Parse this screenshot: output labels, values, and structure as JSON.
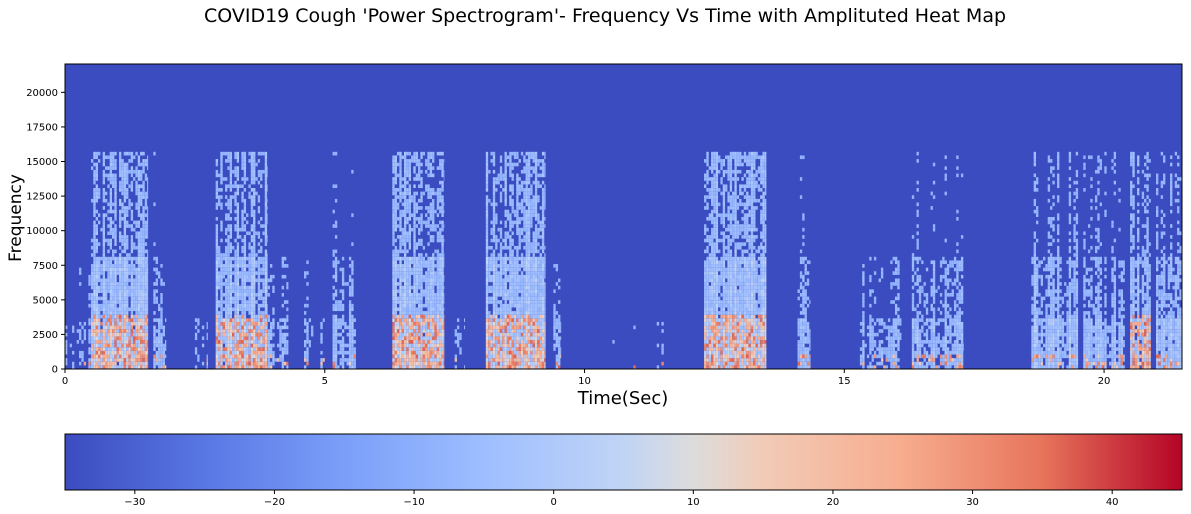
{
  "chart_data": {
    "type": "heatmap",
    "title": "COVID19 Cough 'Power Spectrogram'- Frequency Vs Time with Amplituted Heat Map",
    "xlabel": "Time(Sec)",
    "ylabel": "Frequency",
    "xlim": [
      0,
      21.5
    ],
    "ylim": [
      0,
      22050
    ],
    "xticks": [
      0,
      5,
      10,
      15,
      20
    ],
    "yticks": [
      0,
      2500,
      5000,
      7500,
      10000,
      12500,
      15000,
      17500,
      20000
    ],
    "grid": false,
    "colormap": "coolwarm",
    "colors": {
      "low": "#3b4cc0",
      "mid": "#dddddd",
      "high": "#b40426"
    },
    "spectral_cutoff_hz": 15700,
    "background_level": -33,
    "events": [
      {
        "t_start": 0.0,
        "t_end": 0.55,
        "intensity": 0.45
      },
      {
        "t_start": 0.5,
        "t_end": 1.6,
        "intensity": 0.95
      },
      {
        "t_start": 1.7,
        "t_end": 1.95,
        "intensity": 0.55
      },
      {
        "t_start": 2.5,
        "t_end": 2.75,
        "intensity": 0.45
      },
      {
        "t_start": 2.9,
        "t_end": 3.9,
        "intensity": 0.95
      },
      {
        "t_start": 3.9,
        "t_end": 4.3,
        "intensity": 0.5
      },
      {
        "t_start": 4.6,
        "t_end": 5.0,
        "intensity": 0.45
      },
      {
        "t_start": 5.15,
        "t_end": 5.6,
        "intensity": 0.6
      },
      {
        "t_start": 6.3,
        "t_end": 7.3,
        "intensity": 0.95
      },
      {
        "t_start": 7.5,
        "t_end": 7.7,
        "intensity": 0.4
      },
      {
        "t_start": 8.1,
        "t_end": 9.25,
        "intensity": 1.0
      },
      {
        "t_start": 9.4,
        "t_end": 9.55,
        "intensity": 0.55
      },
      {
        "t_start": 10.4,
        "t_end": 11.3,
        "intensity": 0.3
      },
      {
        "t_start": 11.3,
        "t_end": 11.6,
        "intensity": 0.35
      },
      {
        "t_start": 12.3,
        "t_end": 13.5,
        "intensity": 1.0
      },
      {
        "t_start": 14.1,
        "t_end": 14.35,
        "intensity": 0.6
      },
      {
        "t_start": 15.3,
        "t_end": 16.1,
        "intensity": 0.55
      },
      {
        "t_start": 16.3,
        "t_end": 17.3,
        "intensity": 0.6
      },
      {
        "t_start": 18.6,
        "t_end": 19.5,
        "intensity": 0.75
      },
      {
        "t_start": 19.6,
        "t_end": 20.4,
        "intensity": 0.65
      },
      {
        "t_start": 20.5,
        "t_end": 20.9,
        "intensity": 0.85
      },
      {
        "t_start": 21.0,
        "t_end": 21.5,
        "intensity": 0.7
      }
    ],
    "colorbar": {
      "vmin": -35,
      "vmax": 45,
      "ticks": [
        -30,
        -20,
        -10,
        0,
        10,
        20,
        30,
        40
      ],
      "tick_labels": [
        "−30",
        "−20",
        "−10",
        "0",
        "10",
        "20",
        "30",
        "40"
      ],
      "orientation": "horizontal"
    }
  }
}
